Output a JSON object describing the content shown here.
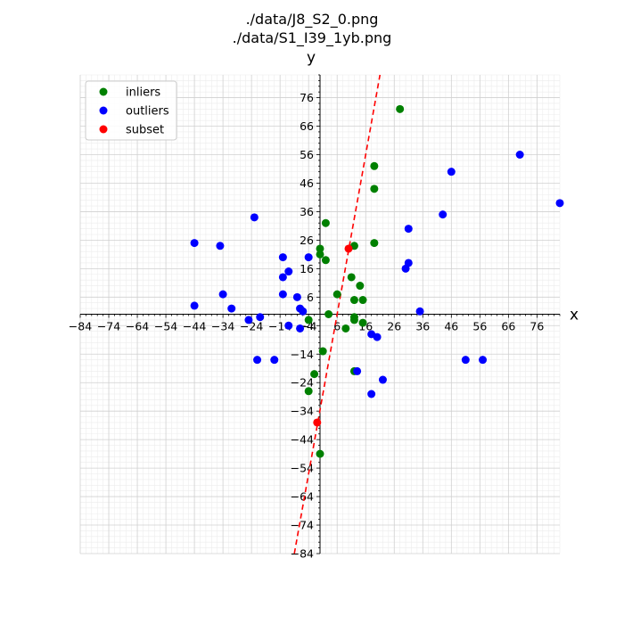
{
  "chart_data": {
    "type": "scatter",
    "title_lines": [
      "./data/J8_S2_0.png",
      "./data/S1_I39_1yb.png"
    ],
    "xlabel": "x",
    "ylabel": "y",
    "xlim": [
      -84,
      84
    ],
    "ylim": [
      -84,
      84
    ],
    "xticks": [
      -84,
      -74,
      -64,
      -54,
      -44,
      -34,
      -24,
      -14,
      -4,
      6,
      16,
      26,
      36,
      46,
      56,
      66,
      76
    ],
    "xtick_labels": [
      "−84",
      "−74",
      "−64",
      "−54",
      "−44",
      "−34",
      "−24",
      "−14",
      "−4",
      "6",
      "16",
      "26",
      "36",
      "46",
      "56",
      "66",
      "76"
    ],
    "yticks": [
      76,
      66,
      56,
      46,
      36,
      26,
      16,
      6,
      -4,
      -14,
      -24,
      -34,
      -44,
      -54,
      -64,
      -74,
      -84
    ],
    "ytick_labels": [
      "76",
      "66",
      "56",
      "46",
      "36",
      "26",
      "16",
      "6",
      "−4",
      "−14",
      "−24",
      "−34",
      "−44",
      "−54",
      "−64",
      "−74",
      "−84"
    ],
    "grid": true,
    "axes_style": "centered spines through origin",
    "legend_position": "top-left",
    "series": [
      {
        "name": "inliers",
        "color": "#008000",
        "points": [
          [
            28,
            72
          ],
          [
            19,
            52
          ],
          [
            19,
            44
          ],
          [
            2,
            32
          ],
          [
            0,
            23
          ],
          [
            0,
            21
          ],
          [
            2,
            19
          ],
          [
            12,
            24
          ],
          [
            19,
            25
          ],
          [
            11,
            13
          ],
          [
            14,
            10
          ],
          [
            6,
            7
          ],
          [
            12,
            5
          ],
          [
            15,
            5
          ],
          [
            3,
            0
          ],
          [
            12,
            -1
          ],
          [
            12,
            -2
          ],
          [
            15,
            -3
          ],
          [
            -4,
            -2
          ],
          [
            9,
            -5
          ],
          [
            1,
            -13
          ],
          [
            -2,
            -21
          ],
          [
            -4,
            -27
          ],
          [
            12,
            -20
          ],
          [
            0,
            -49
          ]
        ]
      },
      {
        "name": "outliers",
        "color": "#0000ff",
        "points": [
          [
            70,
            56
          ],
          [
            84,
            39
          ],
          [
            46,
            50
          ],
          [
            43,
            35
          ],
          [
            31,
            30
          ],
          [
            31,
            18
          ],
          [
            30,
            16
          ],
          [
            -23,
            34
          ],
          [
            -35,
            24
          ],
          [
            -44,
            25
          ],
          [
            -13,
            20
          ],
          [
            -4,
            20
          ],
          [
            -11,
            15
          ],
          [
            -13,
            13
          ],
          [
            -13,
            7
          ],
          [
            -34,
            7
          ],
          [
            -44,
            3
          ],
          [
            -31,
            2
          ],
          [
            -8,
            6
          ],
          [
            -6,
            1
          ],
          [
            -7,
            2
          ],
          [
            35,
            1
          ],
          [
            -25,
            -2
          ],
          [
            -21,
            -1
          ],
          [
            -11,
            -4
          ],
          [
            -7,
            -5
          ],
          [
            18,
            -7
          ],
          [
            20,
            -8
          ],
          [
            -22,
            -16
          ],
          [
            -16,
            -16
          ],
          [
            51,
            -16
          ],
          [
            57,
            -16
          ],
          [
            13,
            -20
          ],
          [
            22,
            -23
          ],
          [
            18,
            -28
          ]
        ]
      },
      {
        "name": "subset",
        "color": "#ff0000",
        "points": [
          [
            10,
            23
          ],
          [
            -1,
            -38
          ]
        ]
      }
    ],
    "fit_line": {
      "style": "dashed",
      "color": "#ff0000",
      "points": [
        [
          -9,
          -84
        ],
        [
          21,
          84
        ]
      ]
    }
  }
}
